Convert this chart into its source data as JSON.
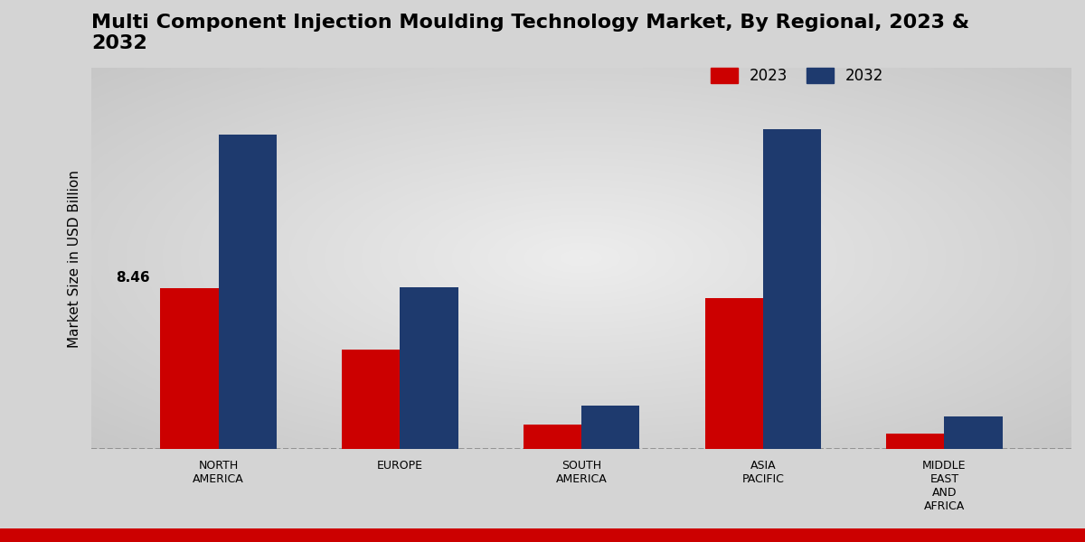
{
  "title": "Multi Component Injection Moulding Technology Market, By Regional, 2023 &\n2032",
  "ylabel": "Market Size in USD Billion",
  "categories": [
    "NORTH\nAMERICA",
    "EUROPE",
    "SOUTH\nAMERICA",
    "ASIA\nPACIFIC",
    "MIDDLE\nEAST\nAND\nAFRICA"
  ],
  "values_2023": [
    8.46,
    5.2,
    1.3,
    7.9,
    0.8
  ],
  "values_2032": [
    16.5,
    8.5,
    2.3,
    16.8,
    1.7
  ],
  "color_2023": "#cc0000",
  "color_2032": "#1e3a6e",
  "bar_width": 0.32,
  "annotate_label": "8.46",
  "ylim": [
    0,
    20
  ],
  "bg_outer": "#d0d0d0",
  "bg_inner": "#e8e8e8",
  "legend_labels": [
    "2023",
    "2032"
  ],
  "title_fontsize": 16,
  "axis_label_fontsize": 11,
  "tick_fontsize": 9,
  "legend_fontsize": 12,
  "bottom_bar_color": "#cc0000"
}
